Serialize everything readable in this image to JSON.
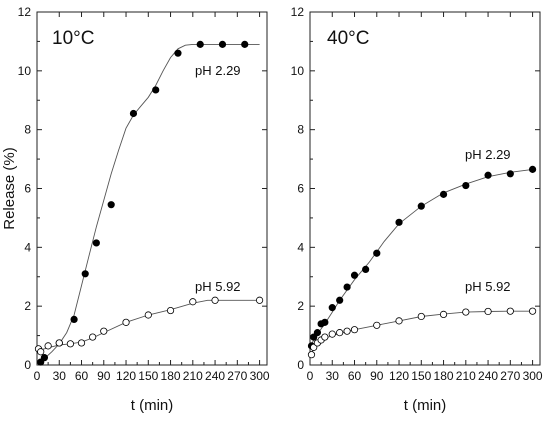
{
  "chart_data": [
    {
      "type": "scatter",
      "panel_label": "10°C",
      "xlabel": "t (min)",
      "ylabel": "Release (%)",
      "xlim": [
        0,
        310
      ],
      "ylim": [
        0,
        12
      ],
      "xticks": [
        "0",
        "30",
        "60",
        "90",
        "120",
        "150",
        "180",
        "210",
        "240",
        "270",
        "300"
      ],
      "yticks": [
        "0",
        "2",
        "4",
        "6",
        "8",
        "10",
        "12"
      ],
      "xtick_values": [
        0,
        30,
        60,
        90,
        120,
        150,
        180,
        210,
        240,
        270,
        300
      ],
      "ytick_values": [
        0,
        2,
        4,
        6,
        8,
        10,
        12
      ],
      "series": [
        {
          "name": "pH 2.29",
          "marker": "filled",
          "x": [
            5,
            10,
            30,
            50,
            65,
            80,
            100,
            130,
            160,
            190,
            220,
            250,
            280
          ],
          "y": [
            0.1,
            0.25,
            0.75,
            1.55,
            3.1,
            4.15,
            5.45,
            8.55,
            9.35,
            10.6,
            10.9,
            10.9,
            10.9
          ]
        },
        {
          "name": "pH 5.92",
          "marker": "open",
          "x": [
            2,
            5,
            15,
            30,
            45,
            60,
            75,
            90,
            120,
            150,
            180,
            210,
            240,
            300
          ],
          "y": [
            0.55,
            0.45,
            0.65,
            0.75,
            0.72,
            0.75,
            0.95,
            1.15,
            1.45,
            1.7,
            1.85,
            2.15,
            2.2,
            2.2
          ]
        }
      ],
      "curves": [
        {
          "x": [
            0,
            10,
            20,
            30,
            40,
            50,
            60,
            70,
            80,
            90,
            100,
            110,
            120,
            130,
            140,
            150,
            160,
            170,
            180,
            190,
            200,
            210,
            220,
            240,
            260,
            280,
            300
          ],
          "y": [
            0.0,
            0.22,
            0.45,
            0.72,
            1.1,
            1.7,
            2.7,
            3.7,
            4.7,
            5.6,
            6.5,
            7.3,
            8.05,
            8.5,
            8.8,
            9.1,
            9.5,
            10.0,
            10.45,
            10.75,
            10.87,
            10.9,
            10.9,
            10.9,
            10.9,
            10.9,
            10.9
          ]
        },
        {
          "x": [
            0,
            10,
            20,
            30,
            45,
            60,
            75,
            90,
            120,
            150,
            180,
            210,
            230,
            240,
            270,
            300
          ],
          "y": [
            0.5,
            0.55,
            0.62,
            0.68,
            0.72,
            0.78,
            0.92,
            1.1,
            1.45,
            1.7,
            1.88,
            2.1,
            2.2,
            2.2,
            2.2,
            2.2
          ]
        }
      ],
      "annotations": [
        "pH 2.29",
        "pH 5.92"
      ]
    },
    {
      "type": "scatter",
      "panel_label": "40°C",
      "xlabel": "t (min)",
      "ylabel": "",
      "xlim": [
        0,
        310
      ],
      "ylim": [
        0,
        12
      ],
      "xticks": [
        "0",
        "30",
        "60",
        "90",
        "120",
        "150",
        "180",
        "210",
        "240",
        "270",
        "300"
      ],
      "yticks": [
        "0",
        "2",
        "4",
        "6",
        "8",
        "10",
        "12"
      ],
      "xtick_values": [
        0,
        30,
        60,
        90,
        120,
        150,
        180,
        210,
        240,
        270,
        300
      ],
      "ytick_values": [
        0,
        2,
        4,
        6,
        8,
        10,
        12
      ],
      "series": [
        {
          "name": "pH 2.29",
          "marker": "filled",
          "x": [
            2,
            5,
            10,
            15,
            20,
            30,
            40,
            50,
            60,
            75,
            90,
            120,
            150,
            180,
            210,
            240,
            270,
            300
          ],
          "y": [
            0.65,
            0.95,
            1.1,
            1.4,
            1.45,
            1.95,
            2.2,
            2.65,
            3.05,
            3.25,
            3.8,
            4.85,
            5.4,
            5.8,
            6.1,
            6.45,
            6.5,
            6.65
          ]
        },
        {
          "name": "pH 5.92",
          "marker": "open",
          "x": [
            2,
            5,
            10,
            15,
            20,
            30,
            40,
            50,
            60,
            90,
            120,
            150,
            180,
            210,
            240,
            270,
            300
          ],
          "y": [
            0.35,
            0.6,
            0.75,
            0.85,
            0.95,
            1.05,
            1.1,
            1.15,
            1.2,
            1.35,
            1.5,
            1.65,
            1.72,
            1.8,
            1.82,
            1.83,
            1.83
          ]
        }
      ],
      "curves": [
        {
          "x": [
            0,
            5,
            10,
            20,
            30,
            40,
            50,
            60,
            80,
            100,
            120,
            150,
            180,
            210,
            240,
            270,
            300
          ],
          "y": [
            0.6,
            0.85,
            1.05,
            1.4,
            1.8,
            2.2,
            2.55,
            2.9,
            3.5,
            4.2,
            4.8,
            5.4,
            5.85,
            6.15,
            6.4,
            6.55,
            6.65
          ]
        },
        {
          "x": [
            0,
            5,
            10,
            20,
            30,
            45,
            60,
            90,
            120,
            150,
            180,
            210,
            240,
            270,
            300
          ],
          "y": [
            0.3,
            0.55,
            0.72,
            0.9,
            1.0,
            1.1,
            1.2,
            1.35,
            1.5,
            1.65,
            1.73,
            1.8,
            1.82,
            1.83,
            1.83
          ]
        }
      ],
      "annotations": [
        "pH 2.29",
        "pH 5.92"
      ]
    }
  ]
}
